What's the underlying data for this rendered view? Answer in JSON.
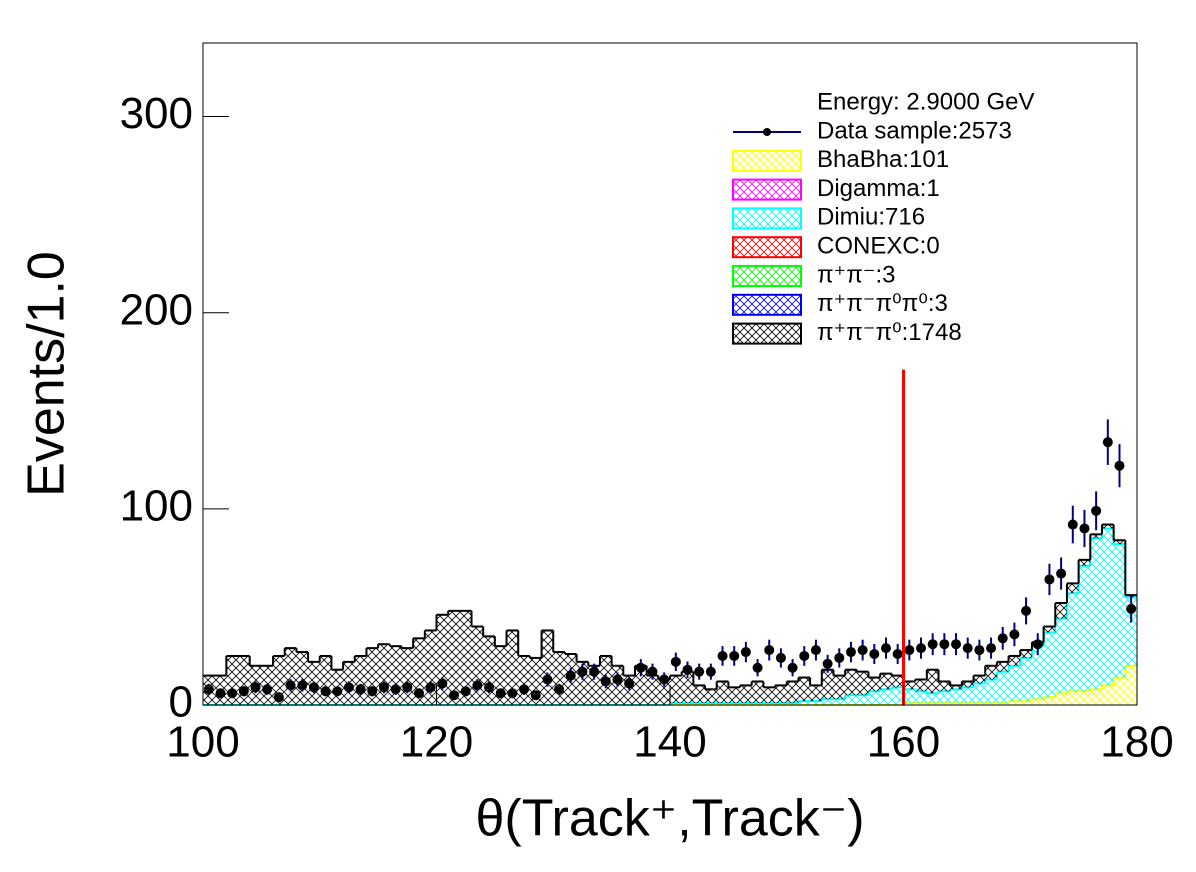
{
  "chart_data": {
    "type": "histogram",
    "stacked": true,
    "xlabel": "θ(Track⁺,Track⁻)",
    "ylabel": "Events/1.0",
    "xlim": [
      100,
      180
    ],
    "ylim": [
      0,
      337.5
    ],
    "xticks": [
      100,
      120,
      140,
      160,
      180
    ],
    "yticks": [
      0,
      100,
      200,
      300
    ],
    "legend": "top-right",
    "legend_title": "Energy: 2.9000 GeV",
    "bins": [
      100,
      101,
      102,
      103,
      104,
      105,
      106,
      107,
      108,
      109,
      110,
      111,
      112,
      113,
      114,
      115,
      116,
      117,
      118,
      119,
      120,
      121,
      122,
      123,
      124,
      125,
      126,
      127,
      128,
      129,
      130,
      131,
      132,
      133,
      134,
      135,
      136,
      137,
      138,
      139,
      140,
      141,
      142,
      143,
      144,
      145,
      146,
      147,
      148,
      149,
      150,
      151,
      152,
      153,
      154,
      155,
      156,
      157,
      158,
      159,
      160,
      161,
      162,
      163,
      164,
      165,
      166,
      167,
      168,
      169,
      170,
      171,
      172,
      173,
      174,
      175,
      176,
      177,
      178,
      179,
      180
    ],
    "data": {
      "name": "Data sample:2573",
      "color": "#000080",
      "values": [
        8,
        6,
        6,
        7,
        9,
        8,
        4,
        10,
        10,
        9,
        7,
        7,
        9,
        8,
        7,
        9,
        8,
        9,
        6,
        9,
        11,
        5,
        7,
        10,
        9,
        6,
        6,
        8,
        5,
        13,
        8,
        15,
        17,
        17,
        12,
        13,
        11,
        19,
        17,
        13,
        22,
        18,
        17,
        17,
        25,
        25,
        27,
        19,
        28,
        24,
        19,
        25,
        28,
        21,
        24,
        27,
        28,
        26,
        29,
        26,
        28,
        29,
        31,
        31,
        31,
        29,
        28,
        29,
        34,
        36,
        48,
        31,
        64,
        67,
        92,
        90,
        99,
        134,
        122,
        49
      ],
      "errors": [
        2.8,
        2.4,
        2.4,
        2.6,
        3,
        2.8,
        2,
        3.2,
        3.2,
        3,
        2.6,
        2.6,
        3,
        2.8,
        2.6,
        3,
        2.8,
        3,
        2.4,
        3,
        3.3,
        2.2,
        2.6,
        3.2,
        3,
        2.4,
        2.4,
        2.8,
        2.2,
        3.6,
        2.8,
        3.9,
        4.1,
        4.1,
        3.5,
        3.6,
        3.3,
        4.4,
        4.1,
        3.6,
        4.7,
        4.2,
        4.1,
        4.1,
        5,
        5,
        5.2,
        4.4,
        5.3,
        4.9,
        4.4,
        5,
        5.3,
        4.6,
        4.9,
        5.2,
        5.3,
        5.1,
        5.4,
        5.1,
        5.3,
        5.4,
        5.6,
        5.6,
        5.6,
        5.4,
        5.3,
        5.4,
        5.8,
        6,
        6.9,
        5.6,
        8,
        8.2,
        9.6,
        9.5,
        9.9,
        11.6,
        11,
        7
      ]
    },
    "series": [
      {
        "name": "BhaBha:101",
        "color": "#ffff00",
        "values": [
          0,
          0,
          0,
          0,
          0,
          0,
          0,
          0,
          0,
          0,
          0,
          0,
          0,
          0,
          0,
          0,
          0,
          0,
          0,
          0,
          0,
          0,
          0,
          0,
          0,
          0,
          0,
          0,
          0,
          0,
          0,
          0,
          0,
          0,
          0,
          0,
          0,
          0,
          0,
          0,
          0,
          0,
          0,
          0,
          0,
          0,
          0,
          0,
          0,
          0,
          0,
          0,
          0,
          0,
          0,
          0,
          0,
          0,
          0,
          0,
          1,
          1,
          1,
          1,
          1,
          1,
          1,
          1,
          1,
          2,
          2,
          3,
          4,
          6,
          7,
          7,
          8,
          10,
          14,
          20
        ]
      },
      {
        "name": "Digamma:1",
        "color": "#ff00ff"
      },
      {
        "name": "Dimiu:716",
        "color": "#00ffff",
        "values": [
          0,
          0,
          0,
          0,
          0,
          0,
          0,
          0,
          0,
          0,
          0,
          0,
          0,
          0,
          0,
          0,
          0,
          0,
          0,
          0,
          0,
          0,
          0,
          0,
          0,
          0,
          0,
          0,
          0,
          0,
          0,
          0,
          0,
          0,
          0,
          0,
          0,
          0,
          0,
          0,
          1,
          1,
          1,
          1,
          1,
          1,
          1,
          1,
          1,
          1,
          1,
          2,
          2,
          3,
          3,
          5,
          5,
          7,
          8,
          9,
          7,
          6,
          5,
          6,
          7,
          8,
          10,
          12,
          16,
          18,
          22,
          27,
          33,
          38,
          50,
          64,
          77,
          80,
          68,
          35
        ]
      },
      {
        "name": "CONEXC:0",
        "color": "#ff0000"
      },
      {
        "name": "π⁺π⁻:3",
        "color": "#00ff00"
      },
      {
        "name": "π⁺π⁻π⁰π⁰:3",
        "color": "#0000ff"
      },
      {
        "name": "π⁺π⁻π⁰:1748",
        "color": "#000000",
        "values": [
          15,
          15,
          25,
          25,
          20,
          20,
          25,
          29,
          27,
          22,
          25,
          18,
          22,
          25,
          29,
          31,
          30,
          29,
          34,
          38,
          46,
          48,
          48,
          40,
          35,
          30,
          38,
          25,
          24,
          38,
          27,
          26,
          22,
          20,
          25,
          20,
          15,
          20,
          15,
          13,
          14,
          16,
          9,
          7,
          11,
          8,
          9,
          11,
          8,
          9,
          11,
          12,
          8,
          15,
          12,
          13,
          12,
          7,
          8,
          6,
          4,
          6,
          12,
          5,
          2,
          3,
          4,
          7,
          5,
          5,
          4,
          2,
          3,
          8,
          5,
          3,
          2,
          2,
          2,
          1
        ]
      }
    ],
    "vline": {
      "x": 160,
      "ymax": 171,
      "color": "#ff0000"
    }
  }
}
